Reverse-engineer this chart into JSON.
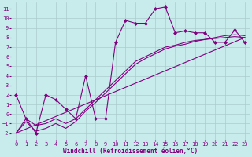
{
  "bg_color": "#c8ecec",
  "grid_color": "#aacccc",
  "line_color": "#800080",
  "marker": "D",
  "markersize": 2.0,
  "linewidth": 0.8,
  "xlabel": "Windchill (Refroidissement éolien,°C)",
  "xlabel_fontsize": 5.5,
  "tick_fontsize": 5.0,
  "xlim": [
    -0.5,
    23.5
  ],
  "ylim": [
    -2.7,
    11.7
  ],
  "xticks": [
    0,
    1,
    2,
    3,
    4,
    5,
    6,
    7,
    8,
    9,
    10,
    11,
    12,
    13,
    14,
    15,
    16,
    17,
    18,
    19,
    20,
    21,
    22,
    23
  ],
  "yticks": [
    -2,
    -1,
    0,
    1,
    2,
    3,
    4,
    5,
    6,
    7,
    8,
    9,
    10,
    11
  ],
  "series1_x": [
    0,
    1,
    2,
    3,
    4,
    5,
    6,
    7,
    8,
    9,
    10,
    11,
    12,
    13,
    14,
    15,
    16,
    17,
    18,
    19,
    20,
    21,
    22,
    23
  ],
  "series1_y": [
    2.0,
    -0.5,
    -2.0,
    2.0,
    1.5,
    0.5,
    -0.5,
    4.0,
    -0.5,
    -0.5,
    7.5,
    9.8,
    9.5,
    9.5,
    11.0,
    11.2,
    8.5,
    8.7,
    8.5,
    8.5,
    7.5,
    7.5,
    8.8,
    7.5
  ],
  "series2_x": [
    0,
    1,
    2,
    3,
    4,
    5,
    6,
    7,
    8,
    9,
    10,
    11,
    12,
    13,
    14,
    15,
    16,
    17,
    18,
    19,
    20,
    21,
    22,
    23
  ],
  "series2_y": [
    -2.0,
    -0.5,
    -1.2,
    -1.0,
    -0.5,
    -1.0,
    -0.5,
    0.5,
    1.5,
    2.5,
    3.5,
    4.5,
    5.5,
    6.0,
    6.5,
    7.0,
    7.2,
    7.5,
    7.7,
    7.8,
    7.9,
    8.0,
    8.1,
    8.0
  ],
  "series3_x": [
    0,
    1,
    2,
    3,
    4,
    5,
    6,
    7,
    8,
    9,
    10,
    11,
    12,
    13,
    14,
    15,
    16,
    17,
    18,
    19,
    20,
    21,
    22,
    23
  ],
  "series3_y": [
    -2.0,
    -0.8,
    -1.8,
    -1.5,
    -1.0,
    -1.5,
    -0.8,
    0.3,
    1.2,
    2.2,
    3.2,
    4.2,
    5.2,
    5.8,
    6.3,
    6.8,
    7.1,
    7.3,
    7.6,
    7.8,
    8.0,
    8.2,
    8.3,
    8.2
  ],
  "series4_x": [
    0,
    23
  ],
  "series4_y": [
    -2.0,
    8.0
  ]
}
